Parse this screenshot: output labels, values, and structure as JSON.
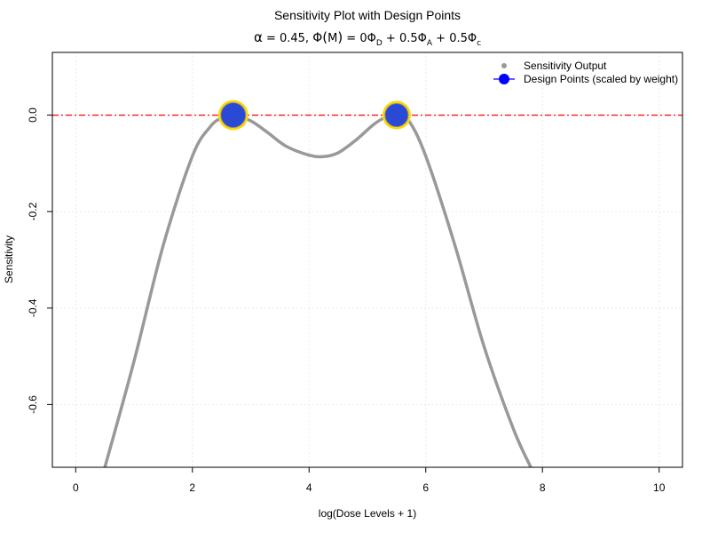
{
  "chart_data": {
    "type": "line",
    "title": "Sensitivity Plot with Design Points",
    "subtitle": {
      "alpha_sym": "α",
      "alpha_rest": " = 0.45, ",
      "phi_sym": "Φ",
      "paren_open": "(",
      "M": "M",
      "paren_close": ")",
      "eq": " = 0",
      "d_sub": "D",
      "plus1": " + 0.5",
      "a_sub": "A",
      "plus2": " + 0.5",
      "c_sub": "c"
    },
    "xlabel": "log(Dose Levels + 1)",
    "ylabel": "Sensitivity",
    "xlim": [
      -0.4,
      10.4
    ],
    "ylim": [
      -0.73,
      0.13
    ],
    "xticks": [
      0,
      2,
      4,
      6,
      8,
      10
    ],
    "yticks": [
      0.0,
      -0.2,
      -0.4,
      -0.6
    ],
    "xtick_labels": [
      "0",
      "2",
      "4",
      "6",
      "8",
      "10"
    ],
    "ytick_labels": [
      "0.0",
      "-0.2",
      "-0.4",
      "-0.6"
    ],
    "grid": true,
    "legend": {
      "placement": "top-right",
      "entries": [
        "Sensitivity Output",
        "Design Points (scaled by weight)"
      ]
    },
    "reference_line": {
      "y": 0,
      "color": "#ff0000"
    },
    "series": [
      {
        "name": "Sensitivity Output",
        "color": "#999999",
        "x": [
          0.5,
          1.0,
          1.5,
          2.0,
          2.3,
          2.5,
          2.7,
          3.0,
          3.3,
          3.6,
          4.0,
          4.25,
          4.5,
          4.8,
          5.1,
          5.3,
          5.5,
          5.7,
          6.0,
          6.5,
          7.0,
          7.5,
          7.8
        ],
        "y": [
          -0.73,
          -0.51,
          -0.27,
          -0.085,
          -0.025,
          -0.006,
          0.0,
          -0.012,
          -0.037,
          -0.064,
          -0.083,
          -0.086,
          -0.078,
          -0.052,
          -0.02,
          -0.005,
          0.0,
          -0.01,
          -0.085,
          -0.27,
          -0.48,
          -0.65,
          -0.73
        ]
      },
      {
        "name": "Design Points (scaled by weight)",
        "color": "#2a4ad6",
        "outline_color": "#ffd700",
        "x": [
          2.7,
          5.5
        ],
        "y": [
          0.0,
          0.0
        ],
        "weight": [
          0.55,
          0.45
        ]
      }
    ]
  }
}
